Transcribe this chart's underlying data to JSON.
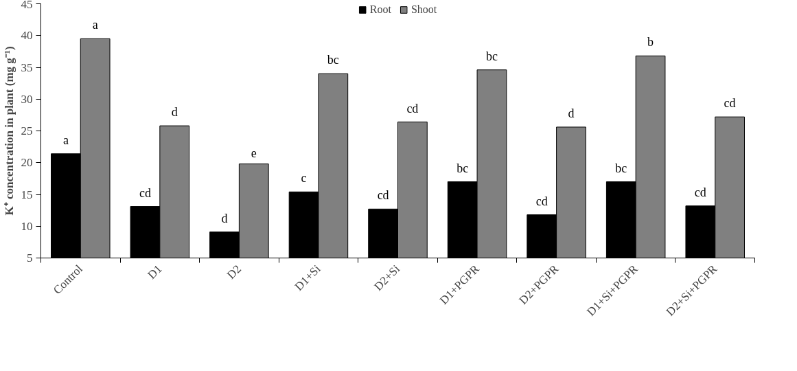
{
  "chart_data": {
    "type": "bar",
    "ylabel": "K⁺ concentration in plant (mg g⁻¹)",
    "categories": [
      "Control",
      "D1",
      "D2",
      "D1+Si",
      "D2+Si",
      "D1+PGPR",
      "D2+PGPR",
      "D1+Si+PGPR",
      "D2+Si+PGPR"
    ],
    "series": [
      {
        "name": "Root",
        "color": "#000000",
        "values": [
          21.4,
          13.1,
          9.1,
          15.4,
          12.7,
          17.0,
          11.8,
          17.0,
          13.2
        ],
        "value_labels": [
          "a",
          "cd",
          "d",
          "c",
          "cd",
          "bc",
          "cd",
          "bc",
          "cd"
        ]
      },
      {
        "name": "Shoot",
        "color": "#808080",
        "values": [
          39.5,
          25.8,
          19.8,
          34.0,
          26.4,
          34.6,
          25.6,
          36.8,
          27.2
        ],
        "value_labels": [
          "a",
          "d",
          "e",
          "bc",
          "cd",
          "bc",
          "d",
          "b",
          "cd"
        ]
      }
    ],
    "ylim": [
      5,
      45
    ],
    "yticks": [
      5,
      10,
      15,
      20,
      25,
      30,
      35,
      40,
      45
    ],
    "grid": false,
    "legend": "top"
  }
}
